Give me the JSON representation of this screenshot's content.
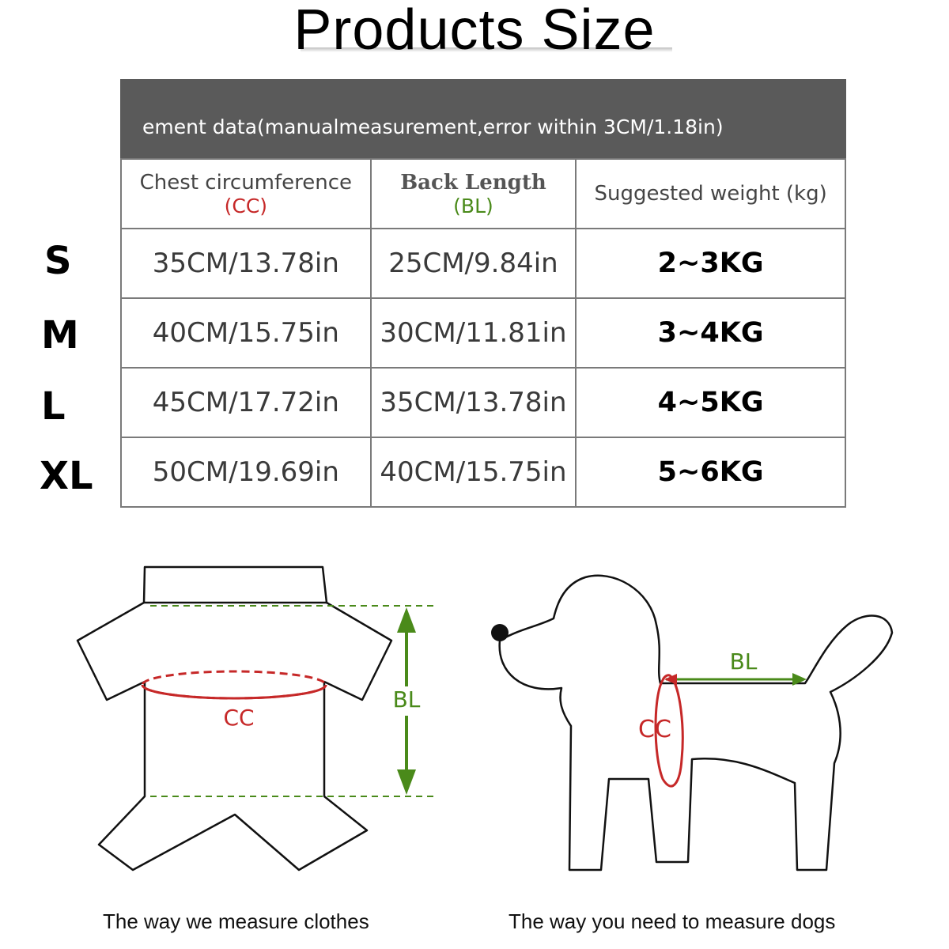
{
  "title": "Products Size",
  "banner_text": "ement data(manualmeasurement,error within 3CM/1.18in)",
  "columns": {
    "chest": {
      "label": "Chest circumference",
      "abbr": "(CC)"
    },
    "back": {
      "label": "Back Length",
      "abbr": "(BL)"
    },
    "weight": {
      "label": "Suggested weight (kg)"
    }
  },
  "rows": [
    {
      "size": "S",
      "chest": "35CM/13.78in",
      "back": "25CM/9.84in",
      "weight": "2~3KG"
    },
    {
      "size": "M",
      "chest": "40CM/15.75in",
      "back": "30CM/11.81in",
      "weight": "3~4KG"
    },
    {
      "size": "L",
      "chest": "45CM/17.72in",
      "back": "35CM/13.78in",
      "weight": "4~5KG"
    },
    {
      "size": "XL",
      "chest": "50CM/19.69in",
      "back": "40CM/15.75in",
      "weight": "5~6KG"
    }
  ],
  "diagram": {
    "cc_label": "CC",
    "bl_label": "BL",
    "caption_clothes": "The way we measure clothes",
    "caption_dogs": "The way you need to measure dogs"
  },
  "colors": {
    "cc": "#c62828",
    "bl": "#4a8a1a",
    "banner": "#5a5a5a"
  }
}
